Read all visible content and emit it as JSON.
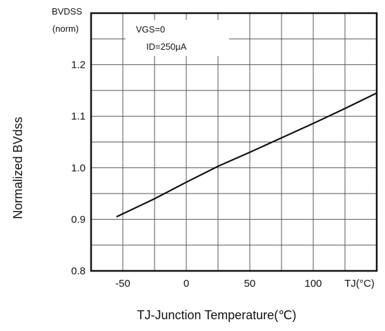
{
  "chart_data": {
    "type": "line",
    "ylabel": "Normalized BVdss",
    "xlabel": "TJ-Junction Temperature(℃)",
    "y_axis_unit_top": "BVDSS",
    "y_axis_unit_bottom": "(norm)",
    "x_axis_unit_tick": "TJ(°C)",
    "conditions": [
      "VGS=0",
      "ID=250μA"
    ],
    "xlim": [
      -75,
      150
    ],
    "ylim": [
      0.8,
      1.3
    ],
    "grid": true,
    "x_ticks": [
      -50,
      0,
      50,
      100
    ],
    "x_tick_labels": [
      "-50",
      "0",
      "50",
      "100"
    ],
    "y_ticks": [
      0.8,
      0.9,
      1.0,
      1.1,
      1.2
    ],
    "y_tick_labels": [
      "0.8",
      "0.9",
      "1.0",
      "1.1",
      "1.2"
    ],
    "series": [
      {
        "x": [
          -55,
          -25,
          0,
          25,
          50,
          75,
          100,
          125,
          150
        ],
        "y": [
          0.905,
          0.94,
          0.972,
          1.003,
          1.03,
          1.058,
          1.086,
          1.115,
          1.145
        ]
      }
    ]
  }
}
